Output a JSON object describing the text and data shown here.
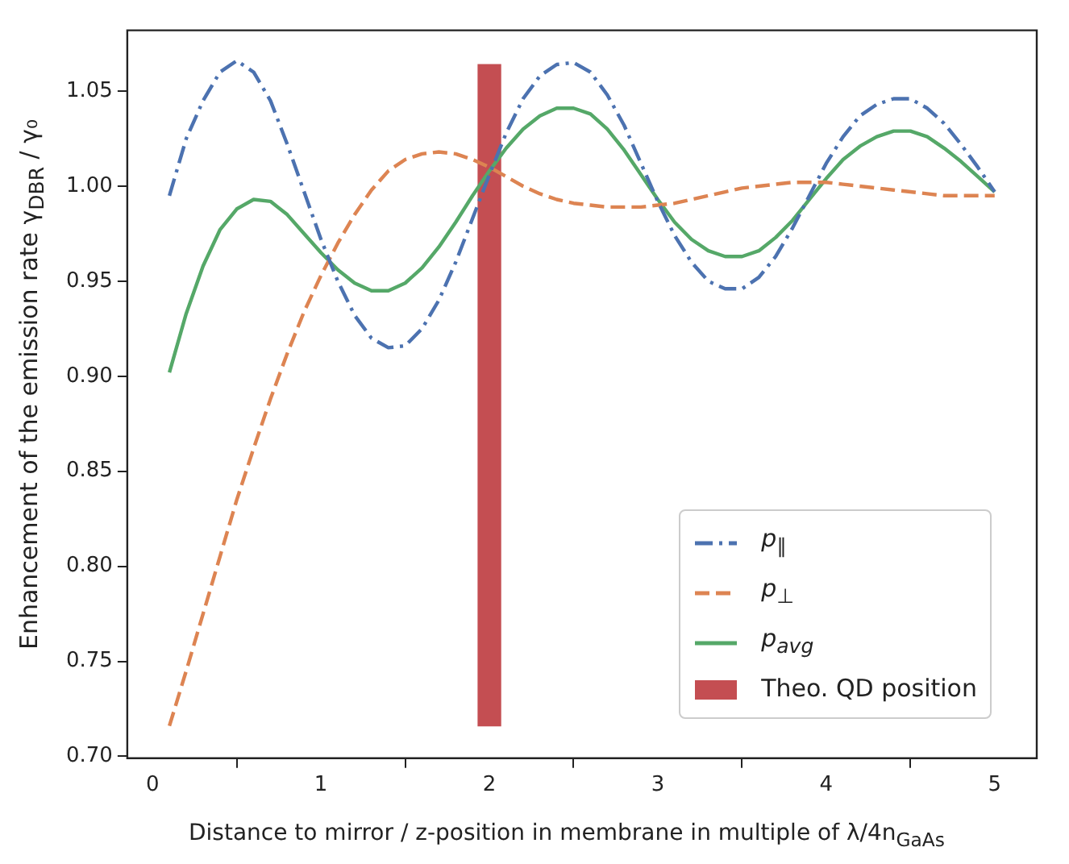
{
  "chart_data": {
    "type": "line",
    "xlabel": "Distance to mirror / z-position in membrane in multiple of λ/4n$_{GaAs}$",
    "ylabel": "Enhancement of the emission rate γ$_{DBR}$ / γ₀",
    "x": [
      0.1,
      0.2,
      0.3,
      0.4,
      0.5,
      0.6,
      0.7,
      0.8,
      0.9,
      1.0,
      1.1,
      1.2,
      1.3,
      1.4,
      1.5,
      1.6,
      1.7,
      1.8,
      1.9,
      2.0,
      2.1,
      2.2,
      2.3,
      2.4,
      2.5,
      2.6,
      2.7,
      2.8,
      2.9,
      3.0,
      3.1,
      3.2,
      3.3,
      3.4,
      3.5,
      3.6,
      3.7,
      3.8,
      3.9,
      4.0,
      4.1,
      4.2,
      4.3,
      4.4,
      4.5,
      4.6,
      4.7,
      4.8,
      4.9,
      5.0
    ],
    "series": [
      {
        "name": "p$_{∥}$",
        "color": "#4c72b0",
        "line_style": "dashdot",
        "values": [
          0.995,
          1.025,
          1.045,
          1.06,
          1.066,
          1.06,
          1.045,
          1.022,
          0.997,
          0.972,
          0.95,
          0.932,
          0.92,
          0.915,
          0.916,
          0.925,
          0.94,
          0.96,
          0.983,
          1.006,
          1.028,
          1.046,
          1.058,
          1.064,
          1.065,
          1.06,
          1.048,
          1.032,
          1.012,
          0.992,
          0.974,
          0.96,
          0.95,
          0.946,
          0.946,
          0.952,
          0.963,
          0.978,
          0.995,
          1.012,
          1.026,
          1.037,
          1.043,
          1.046,
          1.046,
          1.041,
          1.033,
          1.022,
          1.01,
          0.997
        ]
      },
      {
        "name": "p$_{⊥}$",
        "color": "#dd8452",
        "line_style": "dashed",
        "values": [
          0.716,
          0.745,
          0.775,
          0.805,
          0.835,
          0.862,
          0.888,
          0.912,
          0.934,
          0.953,
          0.97,
          0.985,
          0.998,
          1.008,
          1.014,
          1.017,
          1.018,
          1.017,
          1.014,
          1.01,
          1.005,
          1.0,
          0.996,
          0.993,
          0.991,
          0.99,
          0.989,
          0.989,
          0.989,
          0.99,
          0.991,
          0.993,
          0.995,
          0.997,
          0.999,
          1.0,
          1.001,
          1.002,
          1.002,
          1.002,
          1.001,
          1.0,
          0.999,
          0.998,
          0.997,
          0.996,
          0.995,
          0.995,
          0.995,
          0.995
        ]
      },
      {
        "name": "p$_{avg}$",
        "color": "#55a868",
        "line_style": "solid",
        "values": [
          0.902,
          0.933,
          0.958,
          0.977,
          0.988,
          0.993,
          0.992,
          0.985,
          0.975,
          0.965,
          0.956,
          0.949,
          0.945,
          0.945,
          0.949,
          0.957,
          0.968,
          0.981,
          0.995,
          1.008,
          1.02,
          1.03,
          1.037,
          1.041,
          1.041,
          1.038,
          1.03,
          1.019,
          1.006,
          0.993,
          0.981,
          0.972,
          0.966,
          0.963,
          0.963,
          0.966,
          0.973,
          0.982,
          0.993,
          1.004,
          1.014,
          1.021,
          1.026,
          1.029,
          1.029,
          1.026,
          1.02,
          1.013,
          1.005,
          0.997
        ]
      },
      {
        "name": "Theo. QD position",
        "type": "bar",
        "color": "#c44e52",
        "x": [
          2
        ],
        "values": [
          0.348
        ],
        "base": [
          0.716
        ]
      }
    ],
    "xlim": [
      -0.15,
      5.25
    ],
    "xticks": [
      0,
      1,
      2,
      3,
      4,
      5
    ],
    "ylim": [
      0.699,
      1.082
    ],
    "yticks": [
      {
        "value": 0.7,
        "label": "0.70"
      },
      {
        "value": 0.75,
        "label": "0.75"
      },
      {
        "value": 0.8,
        "label": "0.80"
      },
      {
        "value": 0.85,
        "label": "0.85"
      },
      {
        "value": 0.9,
        "label": "0.90"
      },
      {
        "value": 0.95,
        "label": "0.95"
      },
      {
        "value": 1.0,
        "label": "1.00"
      },
      {
        "value": 1.05,
        "label": "1.05"
      }
    ],
    "legend": "bottom right"
  }
}
